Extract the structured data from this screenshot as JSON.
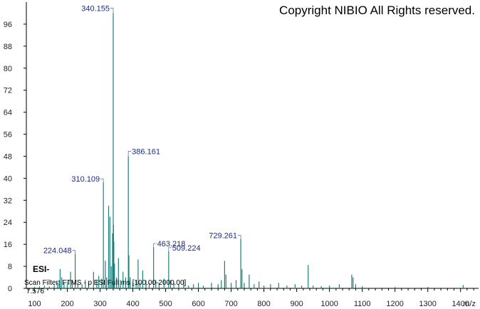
{
  "copyright": "Copyright NIBIO All Rights reserved.",
  "ionization": "ESI-",
  "scan_filter": "Scan Filter: FTMS - p ESI Full ms [100.00-2000.00]",
  "retention": "7.576",
  "colors": {
    "peaks": "#1f7f7a",
    "labels": "#1a2a8a",
    "axis": "#000000"
  },
  "chart_data": {
    "type": "bar",
    "xlabel": "m/z",
    "ylabel": "",
    "xlim": [
      75,
      1455
    ],
    "ylim": [
      0,
      104
    ],
    "xticks": [
      100,
      200,
      300,
      400,
      500,
      600,
      700,
      800,
      900,
      1000,
      1100,
      1200,
      1300,
      1400
    ],
    "yticks": [
      0,
      8,
      16,
      24,
      32,
      40,
      48,
      56,
      64,
      72,
      80,
      88,
      96
    ],
    "grid": false,
    "peaks": [
      {
        "x": 100,
        "y": 0.6
      },
      {
        "x": 115,
        "y": 0.8
      },
      {
        "x": 130,
        "y": 1.0
      },
      {
        "x": 145,
        "y": 0.7
      },
      {
        "x": 160,
        "y": 1.2
      },
      {
        "x": 170,
        "y": 2.0
      },
      {
        "x": 175,
        "y": 3.0
      },
      {
        "x": 178,
        "y": 7.0
      },
      {
        "x": 183,
        "y": 4.0
      },
      {
        "x": 190,
        "y": 2.0
      },
      {
        "x": 200,
        "y": 2.5
      },
      {
        "x": 210,
        "y": 6.0
      },
      {
        "x": 215,
        "y": 3.0
      },
      {
        "x": 224.048,
        "y": 12.5
      },
      {
        "x": 232,
        "y": 2.0
      },
      {
        "x": 245,
        "y": 1.5
      },
      {
        "x": 255,
        "y": 3.0
      },
      {
        "x": 265,
        "y": 2.0
      },
      {
        "x": 280,
        "y": 6.0
      },
      {
        "x": 290,
        "y": 3.0
      },
      {
        "x": 296,
        "y": 4.5
      },
      {
        "x": 305,
        "y": 3.5
      },
      {
        "x": 310.109,
        "y": 38.5
      },
      {
        "x": 316,
        "y": 10.0
      },
      {
        "x": 320,
        "y": 4.0
      },
      {
        "x": 326,
        "y": 30.0
      },
      {
        "x": 330,
        "y": 26.0
      },
      {
        "x": 334,
        "y": 8.0
      },
      {
        "x": 338,
        "y": 20.0
      },
      {
        "x": 340.155,
        "y": 100.0
      },
      {
        "x": 341,
        "y": 23.0
      },
      {
        "x": 342,
        "y": 17.0
      },
      {
        "x": 344,
        "y": 9.0
      },
      {
        "x": 350,
        "y": 4.0
      },
      {
        "x": 356,
        "y": 11.0
      },
      {
        "x": 362,
        "y": 3.0
      },
      {
        "x": 370,
        "y": 6.0
      },
      {
        "x": 378,
        "y": 4.0
      },
      {
        "x": 386.161,
        "y": 48.0
      },
      {
        "x": 388,
        "y": 12.0
      },
      {
        "x": 392,
        "y": 4.0
      },
      {
        "x": 400,
        "y": 2.0
      },
      {
        "x": 410,
        "y": 3.0
      },
      {
        "x": 416,
        "y": 10.5
      },
      {
        "x": 422,
        "y": 2.0
      },
      {
        "x": 430,
        "y": 6.5
      },
      {
        "x": 440,
        "y": 3.0
      },
      {
        "x": 450,
        "y": 2.0
      },
      {
        "x": 463.218,
        "y": 15.0
      },
      {
        "x": 470,
        "y": 3.0
      },
      {
        "x": 480,
        "y": 2.0
      },
      {
        "x": 495,
        "y": 3.5
      },
      {
        "x": 509.224,
        "y": 13.5
      },
      {
        "x": 515,
        "y": 3.0
      },
      {
        "x": 525,
        "y": 2.0
      },
      {
        "x": 540,
        "y": 1.5
      },
      {
        "x": 555,
        "y": 3.0
      },
      {
        "x": 570,
        "y": 1.0
      },
      {
        "x": 585,
        "y": 1.5
      },
      {
        "x": 600,
        "y": 2.0
      },
      {
        "x": 615,
        "y": 1.0
      },
      {
        "x": 640,
        "y": 2.0
      },
      {
        "x": 660,
        "y": 1.5
      },
      {
        "x": 670,
        "y": 3.0
      },
      {
        "x": 680,
        "y": 10.0
      },
      {
        "x": 684,
        "y": 5.0
      },
      {
        "x": 700,
        "y": 2.0
      },
      {
        "x": 715,
        "y": 3.0
      },
      {
        "x": 729.261,
        "y": 18.0
      },
      {
        "x": 733,
        "y": 7.0
      },
      {
        "x": 740,
        "y": 2.0
      },
      {
        "x": 755,
        "y": 5.0
      },
      {
        "x": 770,
        "y": 1.5
      },
      {
        "x": 785,
        "y": 2.5
      },
      {
        "x": 800,
        "y": 1.0
      },
      {
        "x": 820,
        "y": 1.5
      },
      {
        "x": 845,
        "y": 2.0
      },
      {
        "x": 870,
        "y": 1.0
      },
      {
        "x": 895,
        "y": 1.5
      },
      {
        "x": 915,
        "y": 1.0
      },
      {
        "x": 935,
        "y": 8.5
      },
      {
        "x": 950,
        "y": 1.0
      },
      {
        "x": 975,
        "y": 0.8
      },
      {
        "x": 1000,
        "y": 1.0
      },
      {
        "x": 1030,
        "y": 1.5
      },
      {
        "x": 1068,
        "y": 5.0
      },
      {
        "x": 1072,
        "y": 4.0
      },
      {
        "x": 1080,
        "y": 1.5
      },
      {
        "x": 1100,
        "y": 0.8
      },
      {
        "x": 1200,
        "y": 0.5
      },
      {
        "x": 1300,
        "y": 0.5
      },
      {
        "x": 1408,
        "y": 1.2
      }
    ],
    "peak_labels": [
      {
        "text": "340.155",
        "x": 340.155,
        "y": 100.0
      },
      {
        "text": "386.161",
        "x": 386.161,
        "y": 48.0
      },
      {
        "text": "310.109",
        "x": 310.109,
        "y": 38.5
      },
      {
        "text": "224.048",
        "x": 224.048,
        "y": 12.5
      },
      {
        "text": "463.218",
        "x": 463.218,
        "y": 15.0
      },
      {
        "text": "509.224",
        "x": 509.224,
        "y": 13.5
      },
      {
        "text": "729.261",
        "x": 729.261,
        "y": 18.0
      }
    ]
  }
}
